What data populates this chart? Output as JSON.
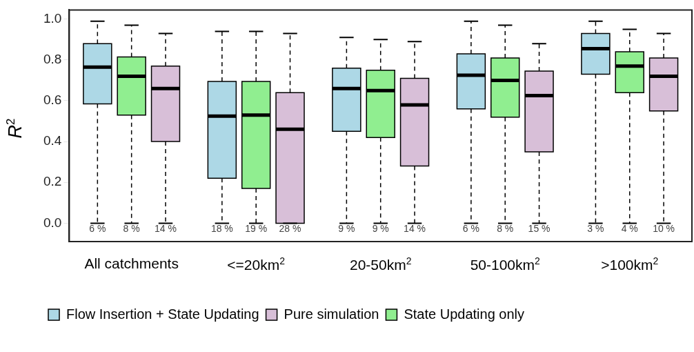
{
  "chart_data": {
    "type": "box",
    "ylabel": "R$^{2}$",
    "categories": [
      "All catchments",
      "<=20km$^{2}$",
      "20-50km$^{2}$",
      "50-100km$^{2}$",
      ">100km$^{2}$"
    ],
    "ylim": [
      -0.09,
      1.045
    ],
    "yticks": [
      {
        "value": 0,
        "label": "0.0"
      },
      {
        "value": 0.2,
        "label": "0.2"
      },
      {
        "value": 0.4,
        "label": "0.4"
      },
      {
        "value": 0.6,
        "label": "0.6"
      },
      {
        "value": 0.8,
        "label": "0.8"
      },
      {
        "value": 1,
        "label": "1.0"
      }
    ],
    "legend": "bottom",
    "series": [
      {
        "name": "Flow Insertion + State Updating",
        "color": "#add8e6",
        "value_labels": [
          "6 %",
          "18 %",
          "9 %",
          "6 %",
          "3 %"
        ],
        "boxes": [
          {
            "low": 0,
            "q1": 0.585,
            "median": 0.765,
            "q3": 0.88,
            "high": 0.99
          },
          {
            "low": 0,
            "q1": 0.22,
            "median": 0.525,
            "q3": 0.695,
            "high": 0.94
          },
          {
            "low": 0,
            "q1": 0.45,
            "median": 0.66,
            "q3": 0.76,
            "high": 0.91
          },
          {
            "low": 0,
            "q1": 0.56,
            "median": 0.725,
            "q3": 0.83,
            "high": 0.99
          },
          {
            "low": 0,
            "q1": 0.73,
            "median": 0.855,
            "q3": 0.93,
            "high": 0.99
          }
        ]
      },
      {
        "name": "State Updating only",
        "color": "#90ee90",
        "value_labels": [
          "8 %",
          "19 %",
          "9 %",
          "8 %",
          "4 %"
        ],
        "boxes": [
          {
            "low": 0,
            "q1": 0.53,
            "median": 0.72,
            "q3": 0.815,
            "high": 0.97
          },
          {
            "low": 0,
            "q1": 0.17,
            "median": 0.53,
            "q3": 0.695,
            "high": 0.94
          },
          {
            "low": 0,
            "q1": 0.42,
            "median": 0.65,
            "q3": 0.75,
            "high": 0.9
          },
          {
            "low": 0,
            "q1": 0.52,
            "median": 0.7,
            "q3": 0.81,
            "high": 0.97
          },
          {
            "low": 0,
            "q1": 0.64,
            "median": 0.77,
            "q3": 0.84,
            "high": 0.95
          }
        ]
      },
      {
        "name": "Pure simulation",
        "color": "#d8bfd8",
        "value_labels": [
          "14 %",
          "28 %",
          "14 %",
          "15 %",
          "10 %"
        ],
        "boxes": [
          {
            "low": 0,
            "q1": 0.4,
            "median": 0.66,
            "q3": 0.77,
            "high": 0.93
          },
          {
            "low": 0,
            "q1": 0,
            "median": 0.46,
            "q3": 0.64,
            "high": 0.93
          },
          {
            "low": 0,
            "q1": 0.28,
            "median": 0.58,
            "q3": 0.71,
            "high": 0.89
          },
          {
            "low": 0,
            "q1": 0.35,
            "median": 0.625,
            "q3": 0.745,
            "high": 0.88
          },
          {
            "low": 0,
            "q1": 0.55,
            "median": 0.72,
            "q3": 0.81,
            "high": 0.93
          }
        ]
      }
    ]
  }
}
